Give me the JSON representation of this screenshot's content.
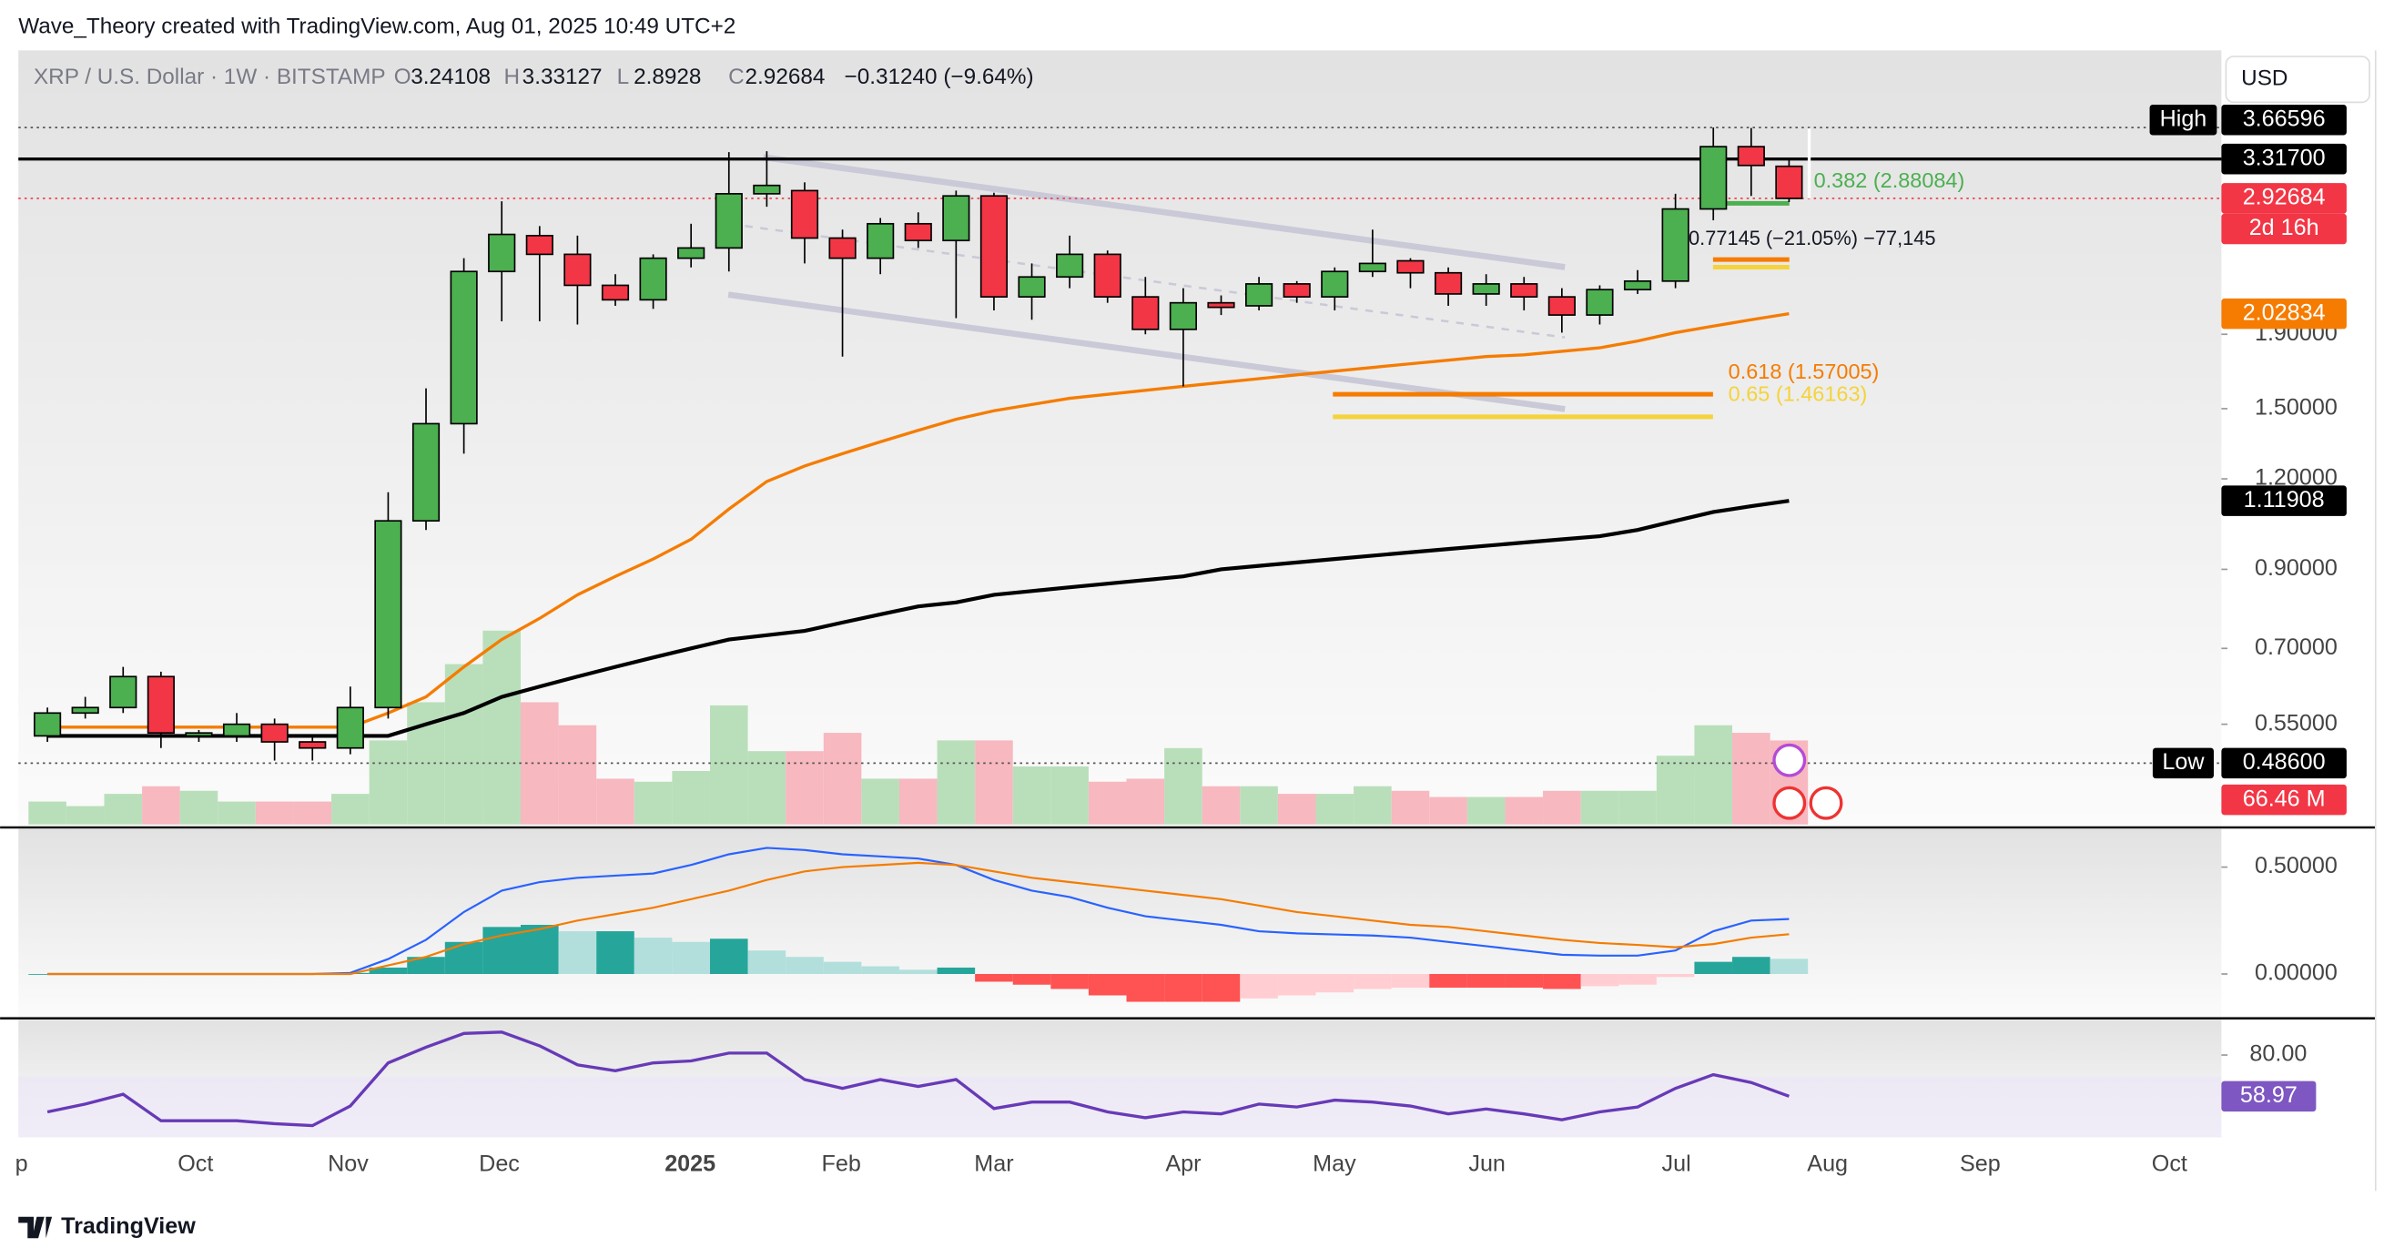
{
  "header": {
    "credit": "Wave_Theory created with TradingView.com, Aug 01, 2025 10:49 UTC+2",
    "symbol": "XRP / U.S. Dollar · 1W · BITSTAMP",
    "o": "O",
    "h": "H",
    "l": "L",
    "c": "C",
    "change": "−0.31240 (−9.64%)",
    "currency": "USD"
  },
  "footer": {
    "brand": "TradingView"
  },
  "chart_data": {
    "type": "candlestick",
    "ylim": [
      0.4,
      4.64
    ],
    "log": true,
    "yticks": [
      {
        "value": 1.9,
        "label": "1.90000"
      },
      {
        "value": 1.5,
        "label": "1.50000"
      },
      {
        "value": 1.2,
        "label": "1.20000"
      },
      {
        "value": 0.9,
        "label": "0.90000"
      },
      {
        "value": 0.7,
        "label": "0.70000"
      },
      {
        "value": 0.55,
        "label": "0.55000"
      }
    ],
    "xtick_labels": [
      "p",
      "Oct",
      "Nov",
      "Dec",
      "2025",
      "Feb",
      "Mar",
      "Apr",
      "May",
      "Jun",
      "Jul",
      "Aug",
      "Sep",
      "Oct"
    ],
    "up_color": "#4caf50",
    "down_color": "#f23645",
    "candles": [
      [
        0.53,
        0.58,
        0.52,
        0.57
      ],
      [
        0.57,
        0.6,
        0.56,
        0.58
      ],
      [
        0.58,
        0.66,
        0.57,
        0.64
      ],
      [
        0.64,
        0.65,
        0.51,
        0.535
      ],
      [
        0.53,
        0.54,
        0.52,
        0.535
      ],
      [
        0.53,
        0.57,
        0.52,
        0.55
      ],
      [
        0.55,
        0.56,
        0.49,
        0.52
      ],
      [
        0.52,
        0.53,
        0.49,
        0.51
      ],
      [
        0.51,
        0.62,
        0.5,
        0.58
      ],
      [
        0.58,
        1.15,
        0.56,
        1.05
      ],
      [
        1.05,
        1.6,
        1.02,
        1.43
      ],
      [
        1.43,
        2.42,
        1.3,
        2.32
      ],
      [
        2.32,
        2.9,
        1.98,
        2.61
      ],
      [
        2.6,
        2.68,
        1.98,
        2.45
      ],
      [
        2.45,
        2.6,
        1.96,
        2.22
      ],
      [
        2.22,
        2.3,
        2.08,
        2.12
      ],
      [
        2.12,
        2.45,
        2.06,
        2.42
      ],
      [
        2.42,
        2.7,
        2.35,
        2.5
      ],
      [
        2.5,
        3.39,
        2.32,
        2.97
      ],
      [
        2.97,
        3.4,
        2.85,
        3.05
      ],
      [
        3.0,
        3.08,
        2.38,
        2.58
      ],
      [
        2.58,
        2.65,
        1.77,
        2.42
      ],
      [
        2.42,
        2.75,
        2.3,
        2.7
      ],
      [
        2.7,
        2.8,
        2.5,
        2.56
      ],
      [
        2.56,
        3.0,
        2.0,
        2.95
      ],
      [
        2.95,
        2.98,
        2.05,
        2.14
      ],
      [
        2.14,
        2.38,
        1.99,
        2.28
      ],
      [
        2.28,
        2.6,
        2.2,
        2.45
      ],
      [
        2.45,
        2.48,
        2.1,
        2.14
      ],
      [
        2.14,
        2.28,
        1.9,
        1.93
      ],
      [
        1.93,
        2.2,
        1.61,
        2.1
      ],
      [
        2.1,
        2.15,
        2.02,
        2.07
      ],
      [
        2.08,
        2.28,
        2.05,
        2.23
      ],
      [
        2.23,
        2.25,
        2.1,
        2.14
      ],
      [
        2.14,
        2.35,
        2.05,
        2.32
      ],
      [
        2.32,
        2.65,
        2.28,
        2.38
      ],
      [
        2.4,
        2.42,
        2.2,
        2.31
      ],
      [
        2.31,
        2.35,
        2.08,
        2.16
      ],
      [
        2.16,
        2.3,
        2.08,
        2.23
      ],
      [
        2.23,
        2.28,
        2.05,
        2.14
      ],
      [
        2.14,
        2.2,
        1.91,
        2.02
      ],
      [
        2.02,
        2.22,
        1.96,
        2.19
      ],
      [
        2.19,
        2.33,
        2.16,
        2.25
      ],
      [
        2.25,
        2.97,
        2.2,
        2.83
      ],
      [
        2.83,
        3.66596,
        2.73,
        3.45
      ],
      [
        3.45,
        3.66,
        2.95,
        3.25
      ],
      [
        3.24108,
        3.33127,
        2.8928,
        2.92684
      ]
    ],
    "ma_series": [
      {
        "color": "#f57c00",
        "values": [
          0.545,
          0.545,
          0.545,
          0.545,
          0.545,
          0.545,
          0.545,
          0.545,
          0.545,
          0.57,
          0.6,
          0.66,
          0.72,
          0.77,
          0.83,
          0.88,
          0.93,
          0.99,
          1.09,
          1.19,
          1.25,
          1.3,
          1.35,
          1.4,
          1.45,
          1.49,
          1.52,
          1.55,
          1.57,
          1.59,
          1.61,
          1.63,
          1.65,
          1.67,
          1.69,
          1.71,
          1.73,
          1.75,
          1.77,
          1.78,
          1.8,
          1.82,
          1.86,
          1.91,
          1.95,
          1.99,
          2.02834
        ]
      },
      {
        "color": "#000000",
        "values": [
          0.53,
          0.53,
          0.53,
          0.53,
          0.53,
          0.53,
          0.53,
          0.53,
          0.53,
          0.53,
          0.55,
          0.57,
          0.6,
          0.62,
          0.64,
          0.66,
          0.68,
          0.7,
          0.72,
          0.73,
          0.74,
          0.76,
          0.78,
          0.8,
          0.81,
          0.83,
          0.84,
          0.85,
          0.86,
          0.87,
          0.88,
          0.9,
          0.91,
          0.92,
          0.93,
          0.94,
          0.95,
          0.96,
          0.97,
          0.98,
          0.99,
          1.0,
          1.02,
          1.05,
          1.08,
          1.1,
          1.11908
        ]
      }
    ],
    "levels": [
      {
        "label": "High",
        "value": 3.66596
      },
      {
        "value": {
          "value": 3.317,
          "label": "3.31700"
        }
      },
      {
        "label": "Low",
        "value": {
          "value": 0.486,
          "label": "0.48600"
        }
      }
    ],
    "countdown": "2d 16h",
    "fib_levels": [
      {
        "label": "0.382 (2.88084)",
        "value": 2.88084,
        "color": "#4caf50"
      },
      {
        "label": "0.618 (1.57005)",
        "value": 1.57005,
        "color": "#f57c00"
      },
      {
        "label": "0.65 (1.46163)",
        "value": 1.46163,
        "color": "#f5d33a"
      }
    ],
    "measure_label": "0.77145 (−21.05%) −77,145",
    "volume": {
      "values": [
        18.1,
        14.5,
        24.2,
        30.2,
        26.6,
        18.1,
        18.1,
        18.1,
        24.2,
        66.5,
        96.7,
        126.9,
        153.4,
        96.7,
        78.5,
        36.2,
        33.8,
        42.3,
        94.2,
        58,
        58,
        72.5,
        36.2,
        36.2,
        66.5,
        66.5,
        45.9,
        45.9,
        33.8,
        36.2,
        60.4,
        30.2,
        30.2,
        24.2,
        24.2,
        30.2,
        26.6,
        21.7,
        21.7,
        21.7,
        26.6,
        26.6,
        26.6,
        54.4,
        78.5,
        72.5,
        66.46
      ],
      "last_label": "66.46 M",
      "up_color": "#b9dfba",
      "down_color": "#f7b8c0"
    },
    "macd": {
      "ylim": [
        -0.193,
        0.664
      ],
      "yticks": [
        {
          "value": 0.5,
          "label": "0.50000"
        },
        {
          "value": 0,
          "label": "0.00000"
        }
      ],
      "series": [
        {
          "color": "#2962ff",
          "values": [
            0,
            0,
            0,
            0,
            0,
            0,
            0,
            0,
            0.005,
            0.07,
            0.16,
            0.29,
            0.39,
            0.43,
            0.45,
            0.46,
            0.47,
            0.51,
            0.56,
            0.59,
            0.58,
            0.56,
            0.55,
            0.54,
            0.51,
            0.44,
            0.39,
            0.36,
            0.31,
            0.27,
            0.25,
            0.23,
            0.2,
            0.19,
            0.185,
            0.18,
            0.17,
            0.15,
            0.13,
            0.11,
            0.09,
            0.086,
            0.086,
            0.11,
            0.2,
            0.25,
            0.257
          ]
        },
        {
          "color": "#f57c00",
          "values": [
            0,
            0,
            0,
            0,
            0,
            0,
            0,
            0,
            0,
            0.04,
            0.08,
            0.14,
            0.18,
            0.21,
            0.25,
            0.28,
            0.31,
            0.35,
            0.39,
            0.44,
            0.48,
            0.5,
            0.51,
            0.52,
            0.51,
            0.48,
            0.45,
            0.43,
            0.41,
            0.39,
            0.37,
            0.35,
            0.32,
            0.29,
            0.27,
            0.25,
            0.23,
            0.22,
            0.2,
            0.18,
            0.16,
            0.145,
            0.136,
            0.125,
            0.14,
            0.17,
            0.186
          ]
        }
      ],
      "histogram": [
        0,
        0,
        0,
        0,
        0,
        0,
        0,
        0,
        0.005,
        0.03,
        0.08,
        0.15,
        0.22,
        0.23,
        0.2,
        0.2,
        0.17,
        0.15,
        0.165,
        0.11,
        0.08,
        0.057,
        0.036,
        0.02,
        0.03,
        -0.036,
        -0.05,
        -0.07,
        -0.1,
        -0.13,
        -0.13,
        -0.13,
        -0.114,
        -0.1,
        -0.086,
        -0.07,
        -0.064,
        -0.064,
        -0.064,
        -0.064,
        -0.07,
        -0.057,
        -0.05,
        -0.014,
        0.057,
        0.08,
        0.071
      ]
    },
    "rsi": {
      "ylim": [
        38,
        96.4
      ],
      "yticks": [
        {
          "value": 80,
          "label": "80.00"
        }
      ],
      "color": "#673ab7",
      "values": [
        51,
        55,
        60,
        46.5,
        46.5,
        46.5,
        45,
        44,
        54,
        76,
        84,
        91,
        91.7,
        84.7,
        75,
        72,
        76,
        77,
        81,
        81,
        67.5,
        63,
        67.5,
        64,
        67.5,
        52.7,
        56,
        56,
        51,
        48,
        51,
        50,
        55,
        53.5,
        57,
        56,
        54,
        50,
        52.5,
        50,
        47,
        51,
        53.5,
        63,
        70,
        66,
        58.97
      ]
    }
  }
}
